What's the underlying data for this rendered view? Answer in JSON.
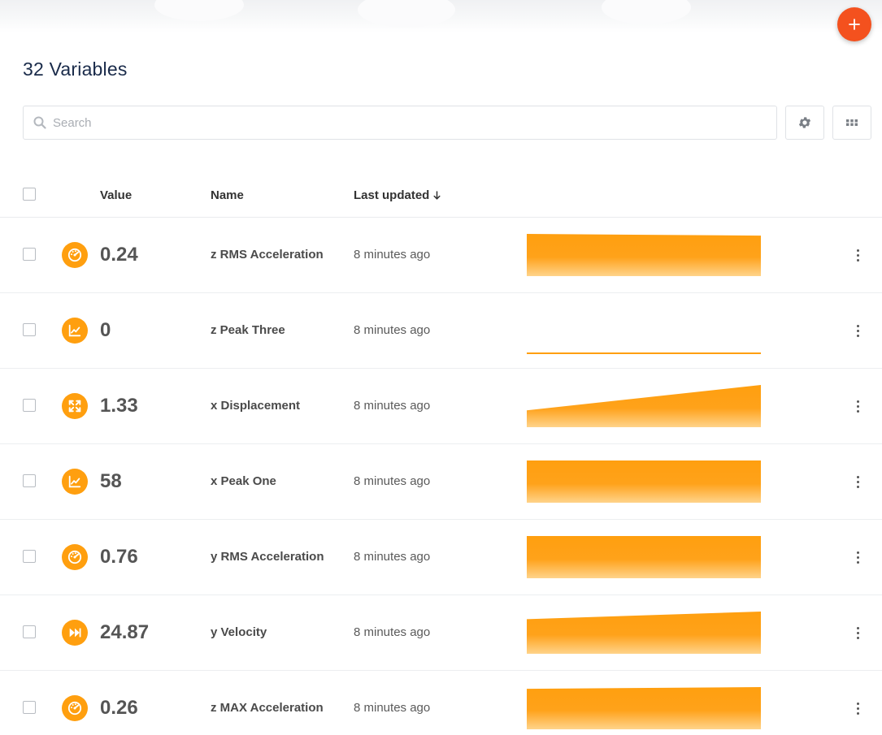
{
  "header": {
    "title": "32 Variables",
    "add_button_label": "+"
  },
  "search": {
    "placeholder": "Search",
    "value": ""
  },
  "toolbar": {
    "settings_icon": "gear-icon",
    "view_icon": "grid-icon"
  },
  "table": {
    "columns": {
      "value": "Value",
      "name": "Name",
      "last_updated": "Last updated"
    },
    "sort": {
      "column": "last_updated",
      "direction": "descending"
    },
    "rows": [
      {
        "icon": "gauge-icon",
        "value": "0.24",
        "name": "z RMS Acceleration",
        "updated": "8 minutes ago",
        "trend": [
          1.0,
          0.96
        ]
      },
      {
        "icon": "line-chart-icon",
        "value": "0",
        "name": "z Peak Three",
        "updated": "8 minutes ago",
        "trend": [
          0,
          0
        ]
      },
      {
        "icon": "expand-icon",
        "value": "1.33",
        "name": "x Displacement",
        "updated": "8 minutes ago",
        "trend": [
          0.4,
          1.0
        ]
      },
      {
        "icon": "line-chart-icon",
        "value": "58",
        "name": "x Peak One",
        "updated": "8 minutes ago",
        "trend": [
          1.0,
          1.0
        ]
      },
      {
        "icon": "gauge-icon",
        "value": "0.76",
        "name": "y RMS Acceleration",
        "updated": "8 minutes ago",
        "trend": [
          1.0,
          1.0
        ]
      },
      {
        "icon": "fast-forward-icon",
        "value": "24.87",
        "name": "y Velocity",
        "updated": "8 minutes ago",
        "trend": [
          0.82,
          1.0
        ]
      },
      {
        "icon": "gauge-icon",
        "value": "0.26",
        "name": "z MAX Acceleration",
        "updated": "8 minutes ago",
        "trend": [
          0.96,
          1.0
        ]
      }
    ]
  },
  "colors": {
    "accent": "#ff9f0f",
    "fab": "#f4511e",
    "title": "#1a2b4a"
  }
}
